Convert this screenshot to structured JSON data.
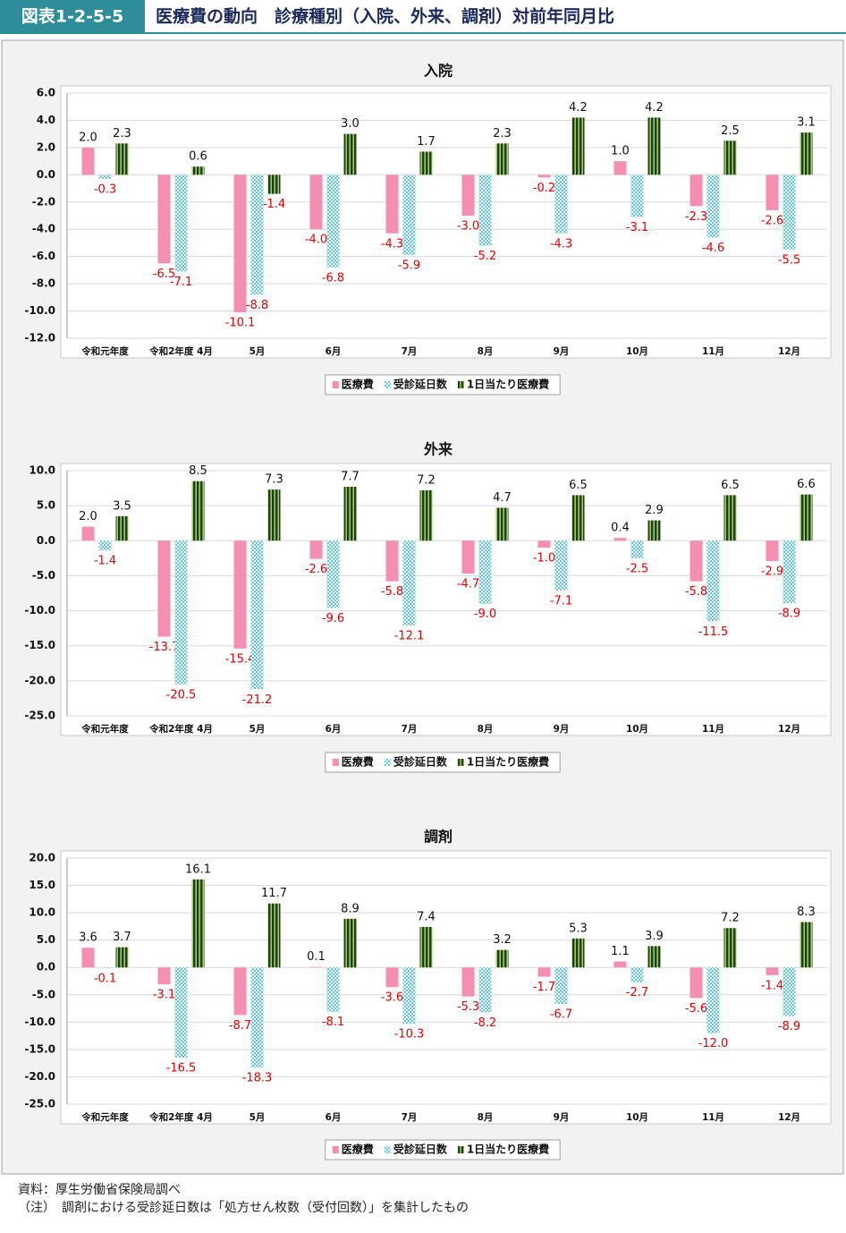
{
  "header": {
    "label": "図表1-2-5-5",
    "title": "医療費の動向　診療種別（入院、外来、調剤）対前年同月比"
  },
  "chart_data": [
    {
      "type": "bar",
      "title": "入院",
      "categories": [
        "令和元年度",
        "令和2年度 4月",
        "5月",
        "6月",
        "7月",
        "8月",
        "9月",
        "10月",
        "11月",
        "12月"
      ],
      "series": [
        {
          "name": "医療費",
          "color": "#f48fb1",
          "values": [
            2.0,
            -6.5,
            -10.1,
            -4.0,
            -4.3,
            -3.0,
            -0.2,
            1.0,
            -2.3,
            -2.6
          ],
          "value_labels": [
            "2.0",
            "-6.5",
            "-10.1",
            "-4.0",
            "-4.3",
            "-3.0",
            "-0.2",
            "1.0",
            "-2.3",
            "-2.6"
          ]
        },
        {
          "name": "受診延日数",
          "color": "#5bc8e0",
          "values": [
            -0.3,
            -7.1,
            -8.8,
            -6.8,
            -5.9,
            -5.2,
            -4.3,
            -3.1,
            -4.6,
            -5.5
          ],
          "value_labels": [
            "-0.3",
            "-7.1",
            "-8.8",
            "-6.8",
            "-5.9",
            "-5.2",
            "-4.3",
            "-3.1",
            "-4.6",
            "-5.5"
          ]
        },
        {
          "name": "1日当たり医療費",
          "color": "#1f3f14",
          "values": [
            2.3,
            0.6,
            -1.4,
            3.0,
            1.7,
            2.3,
            4.2,
            4.2,
            2.5,
            3.1
          ],
          "value_labels": [
            "2.3",
            "0.6",
            "-1.4",
            "3.0",
            "1.7",
            "2.3",
            "4.2",
            "4.2",
            "2.5",
            "3.1"
          ]
        }
      ],
      "ylim": [
        -12,
        6
      ],
      "yticks": [
        {
          "value": -12,
          "label": "-12.0"
        },
        {
          "value": -10,
          "label": "-10.0"
        },
        {
          "value": -8,
          "label": "-8.0"
        },
        {
          "value": -6,
          "label": "-6.0"
        },
        {
          "value": -4,
          "label": "-4.0"
        },
        {
          "value": -2,
          "label": "-2.0"
        },
        {
          "value": 0,
          "label": "0.0"
        },
        {
          "value": 2,
          "label": "2.0"
        },
        {
          "value": 4,
          "label": "4.0"
        },
        {
          "value": 6,
          "label": "6.0"
        }
      ],
      "grid": true,
      "legend": "bottom"
    },
    {
      "type": "bar",
      "title": "外来",
      "categories": [
        "令和元年度",
        "令和2年度 4月",
        "5月",
        "6月",
        "7月",
        "8月",
        "9月",
        "10月",
        "11月",
        "12月"
      ],
      "series": [
        {
          "name": "医療費",
          "color": "#f48fb1",
          "values": [
            2.0,
            -13.7,
            -15.4,
            -2.6,
            -5.8,
            -4.7,
            -1.0,
            0.4,
            -5.8,
            -2.9
          ],
          "value_labels": [
            "2.0",
            "-13.7",
            "-15.4",
            "-2.6",
            "-5.8",
            "-4.7",
            "-1.0",
            "0.4",
            "-5.8",
            "-2.9"
          ]
        },
        {
          "name": "受診延日数",
          "color": "#5bc8e0",
          "values": [
            -1.4,
            -20.5,
            -21.2,
            -9.6,
            -12.1,
            -9.0,
            -7.1,
            -2.5,
            -11.5,
            -8.9
          ],
          "value_labels": [
            "-1.4",
            "-20.5",
            "-21.2",
            "-9.6",
            "-12.1",
            "-9.0",
            "-7.1",
            "-2.5",
            "-11.5",
            "-8.9"
          ]
        },
        {
          "name": "1日当たり医療費",
          "color": "#1f3f14",
          "values": [
            3.5,
            8.5,
            7.3,
            7.7,
            7.2,
            4.7,
            6.5,
            2.9,
            6.5,
            6.6
          ],
          "value_labels": [
            "3.5",
            "8.5",
            "7.3",
            "7.7",
            "7.2",
            "4.7",
            "6.5",
            "2.9",
            "6.5",
            "6.6"
          ]
        }
      ],
      "ylim": [
        -25,
        10
      ],
      "yticks": [
        {
          "value": -25,
          "label": "-25.0"
        },
        {
          "value": -20,
          "label": "-20.0"
        },
        {
          "value": -15,
          "label": "-15.0"
        },
        {
          "value": -10,
          "label": "-10.0"
        },
        {
          "value": -5,
          "label": "-5.0"
        },
        {
          "value": 0,
          "label": "0.0"
        },
        {
          "value": 5,
          "label": "5.0"
        },
        {
          "value": 10,
          "label": "10.0"
        }
      ],
      "grid": true,
      "legend": "bottom"
    },
    {
      "type": "bar",
      "title": "調剤",
      "categories": [
        "令和元年度",
        "令和2年度 4月",
        "5月",
        "6月",
        "7月",
        "8月",
        "9月",
        "10月",
        "11月",
        "12月"
      ],
      "series": [
        {
          "name": "医療費",
          "color": "#f48fb1",
          "values": [
            3.6,
            -3.1,
            -8.7,
            0.1,
            -3.6,
            -5.3,
            -1.7,
            1.1,
            -5.6,
            -1.4
          ],
          "value_labels": [
            "3.6",
            "-3.1",
            "-8.7",
            "0.1",
            "-3.6",
            "-5.3",
            "-1.7",
            "1.1",
            "-5.6",
            "-1.4"
          ]
        },
        {
          "name": "受診延日数",
          "color": "#5bc8e0",
          "values": [
            -0.1,
            -16.5,
            -18.3,
            -8.1,
            -10.3,
            -8.2,
            -6.7,
            -2.7,
            -12.0,
            -8.9
          ],
          "value_labels": [
            "-0.1",
            "-16.5",
            "-18.3",
            "-8.1",
            "-10.3",
            "-8.2",
            "-6.7",
            "-2.7",
            "-12.0",
            "-8.9"
          ]
        },
        {
          "name": "1日当たり医療費",
          "color": "#1f3f14",
          "values": [
            3.7,
            16.1,
            11.7,
            8.9,
            7.4,
            3.2,
            5.3,
            3.9,
            7.2,
            8.3
          ],
          "value_labels": [
            "3.7",
            "16.1",
            "11.7",
            "8.9",
            "7.4",
            "3.2",
            "5.3",
            "3.9",
            "7.2",
            "8.3"
          ]
        }
      ],
      "ylim": [
        -25,
        20
      ],
      "yticks": [
        {
          "value": -25,
          "label": "-25.0"
        },
        {
          "value": -20,
          "label": "-20.0"
        },
        {
          "value": -15,
          "label": "-15.0"
        },
        {
          "value": -10,
          "label": "-10.0"
        },
        {
          "value": -5,
          "label": "-5.0"
        },
        {
          "value": 0,
          "label": "0.0"
        },
        {
          "value": 5,
          "label": "5.0"
        },
        {
          "value": 10,
          "label": "10.0"
        },
        {
          "value": 15,
          "label": "15.0"
        },
        {
          "value": 20,
          "label": "20.0"
        }
      ],
      "grid": true,
      "legend": "bottom"
    }
  ],
  "notes": [
    "資料：厚生労働省保険局調べ",
    "（注）　調剤における受診延日数は「処方せん枚数（受付回数）」を集計したもの"
  ]
}
